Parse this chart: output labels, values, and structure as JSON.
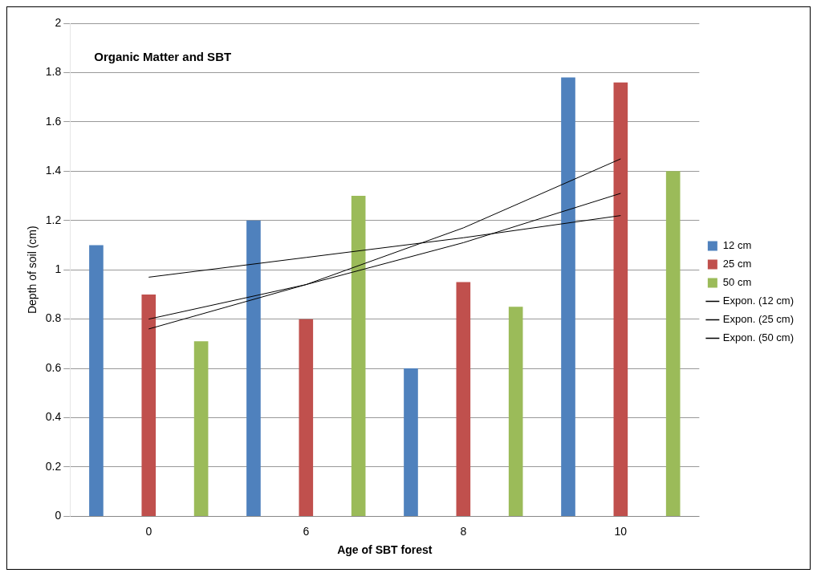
{
  "chart_data": {
    "type": "bar",
    "title": "Organic Matter and SBT",
    "xlabel": "Age of SBT forest",
    "ylabel": "Depth of soil (cm)",
    "categories": [
      "0",
      "6",
      "8",
      "10"
    ],
    "series": [
      {
        "name": "12 cm",
        "color": "#4f81bd",
        "values": [
          1.1,
          1.2,
          0.6,
          1.78
        ]
      },
      {
        "name": "25 cm",
        "color": "#c0504d",
        "values": [
          0.9,
          0.8,
          0.95,
          1.76
        ]
      },
      {
        "name": "50 cm",
        "color": "#9bbb59",
        "values": [
          0.71,
          1.3,
          0.85,
          1.4
        ]
      },
      {
        "name": "Expon. (12 cm)",
        "type": "line",
        "color": "#000000",
        "values": [
          0.97,
          1.05,
          1.13,
          1.22
        ]
      },
      {
        "name": "Expon. (25 cm)",
        "type": "line",
        "color": "#000000",
        "values": [
          0.76,
          0.94,
          1.17,
          1.45
        ]
      },
      {
        "name": "Expon. (50 cm)",
        "type": "line",
        "color": "#000000",
        "values": [
          0.8,
          0.94,
          1.11,
          1.31
        ]
      }
    ],
    "ylim": [
      0,
      2
    ],
    "yticks": [
      0,
      0.2,
      0.4,
      0.6,
      0.8,
      1,
      1.2,
      1.4,
      1.6,
      1.8,
      2
    ],
    "grid": "y",
    "legend": "right",
    "marker": "none"
  }
}
